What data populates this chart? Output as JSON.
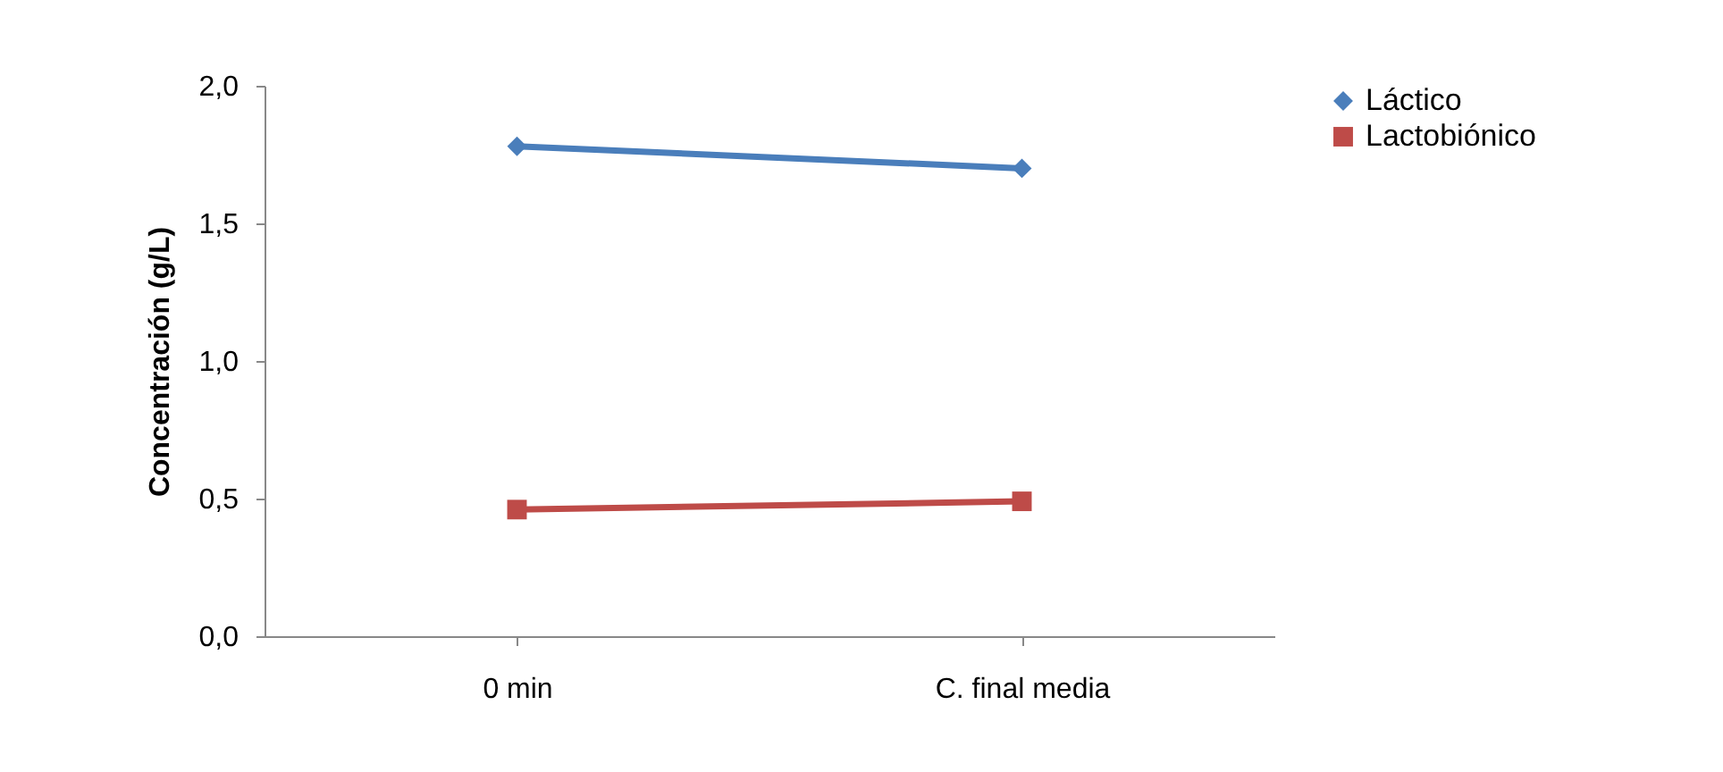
{
  "chart_data": {
    "type": "line",
    "ylabel": "Concentración (g/L)",
    "categories": [
      "0 min",
      "C. final media"
    ],
    "series": [
      {
        "name": "Láctico",
        "color": "#4a7ebb",
        "marker": "diamond",
        "values": [
          1.78,
          1.7
        ]
      },
      {
        "name": "Lactobiónico",
        "color": "#be4b48",
        "marker": "square",
        "values": [
          0.46,
          0.49
        ]
      }
    ],
    "ylim": [
      0,
      2
    ],
    "yticks": [
      {
        "value": 0,
        "label": "0,0"
      },
      {
        "value": 0.5,
        "label": "0,5"
      },
      {
        "value": 1,
        "label": "1,0"
      },
      {
        "value": 1.5,
        "label": "1,5"
      },
      {
        "value": 2,
        "label": "2,0"
      }
    ],
    "grid": false,
    "legend": "right",
    "line_style": "solid"
  }
}
